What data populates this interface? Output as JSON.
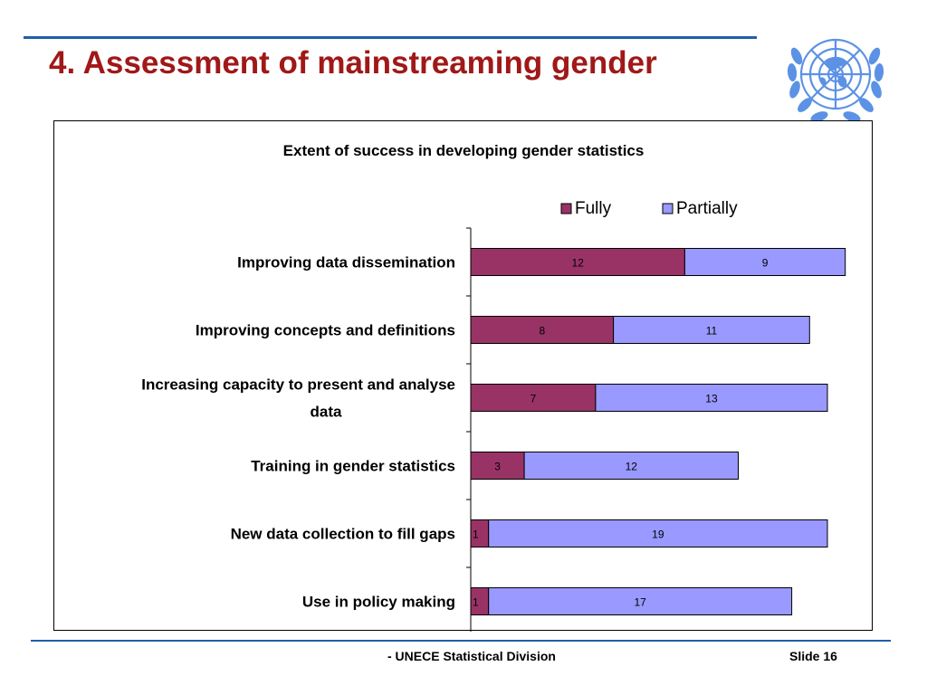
{
  "slide": {
    "title": "4. Assessment of mainstreaming gender",
    "footer_org": "- UNECE Statistical Division",
    "footer_slide": "Slide 16"
  },
  "colors": {
    "title": "#a01818",
    "rule": "#1f5fa8",
    "fully": "#993366",
    "partially": "#9999ff"
  },
  "chart_data": {
    "type": "bar",
    "orientation": "horizontal",
    "stacked": true,
    "title": "Extent of success in developing gender statistics",
    "legend_position": "top-right",
    "grid": false,
    "categories": [
      [
        "Improving data dissemination"
      ],
      [
        "Improving concepts and definitions"
      ],
      [
        "Increasing capacity to present and analyse",
        "data"
      ],
      [
        "Training in gender statistics"
      ],
      [
        "New data collection to fill gaps"
      ],
      [
        "Use in policy making"
      ]
    ],
    "series": [
      {
        "name": "Fully",
        "color": "#993366",
        "values": [
          12,
          8,
          7,
          3,
          1,
          1
        ]
      },
      {
        "name": "Partially",
        "color": "#9999ff",
        "values": [
          9,
          11,
          13,
          12,
          19,
          17
        ]
      }
    ],
    "xlim": [
      0,
      22
    ]
  }
}
